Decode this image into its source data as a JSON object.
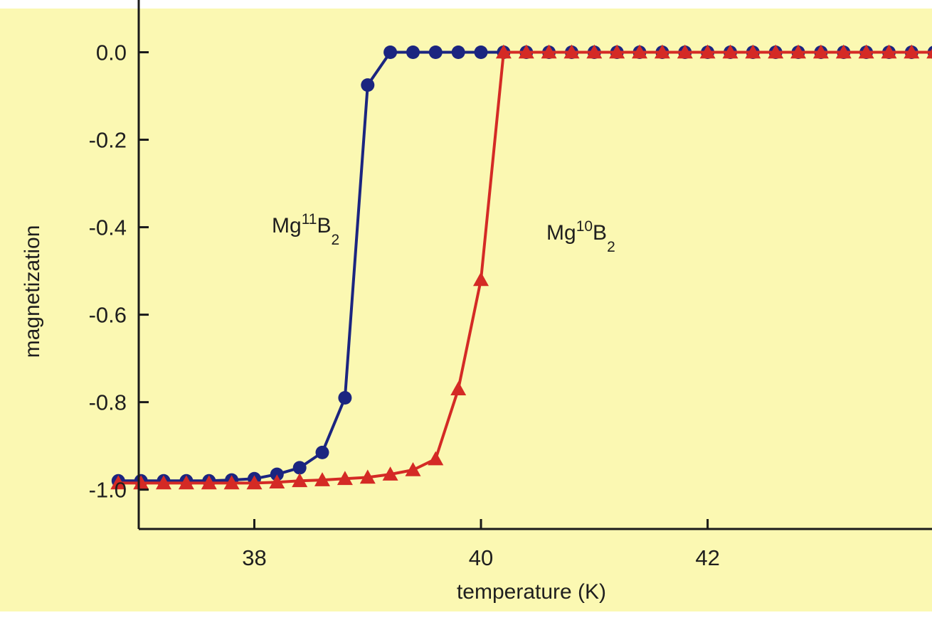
{
  "colors": {
    "background": "#fbf8b2",
    "axis": "#1a1a1a",
    "mg11": "#1b2580",
    "mg10": "#d42a25"
  },
  "chart_data": {
    "type": "line",
    "xlabel": "temperature (K)",
    "ylabel": "magnetization",
    "xlim": [
      36.98,
      43.98
    ],
    "ylim": [
      -1.09,
      0.1
    ],
    "x_ticks": [
      38,
      40,
      42
    ],
    "x_tick_labels": [
      "38",
      "40",
      "42"
    ],
    "y_ticks": [
      0.0,
      -0.2,
      -0.4,
      -0.6,
      -0.8,
      -1.0
    ],
    "y_tick_labels": [
      "0.0",
      "-0.2",
      "-0.4",
      "-0.6",
      "-0.8",
      "-1.0"
    ],
    "grid": false,
    "series": [
      {
        "name_parts": {
          "base": "Mg",
          "sup": "11",
          "mid": "B",
          "sub": "2"
        },
        "marker": "circle",
        "color": "#1b2580",
        "x": [
          36.8,
          37.0,
          37.2,
          37.4,
          37.6,
          37.8,
          38.0,
          38.2,
          38.4,
          38.6,
          38.8,
          39.0,
          39.2,
          39.4,
          39.6,
          39.8,
          40.0,
          40.2,
          40.4,
          40.6,
          40.8,
          41.0,
          41.2,
          41.4,
          41.6,
          41.8,
          42.0,
          42.2,
          42.4,
          42.6,
          42.8,
          43.0,
          43.2,
          43.4,
          43.6,
          43.8,
          44.0
        ],
        "y": [
          -0.98,
          -0.98,
          -0.98,
          -0.98,
          -0.98,
          -0.978,
          -0.975,
          -0.965,
          -0.95,
          -0.915,
          -0.79,
          -0.075,
          0.0,
          0.0,
          0.0,
          0.0,
          0.0,
          0.0,
          0.0,
          0.0,
          0.0,
          0.0,
          0.0,
          0.0,
          0.0,
          0.0,
          0.0,
          0.0,
          0.0,
          0.0,
          0.0,
          0.0,
          0.0,
          0.0,
          0.0,
          0.0,
          0.0
        ]
      },
      {
        "name_parts": {
          "base": "Mg",
          "sup": "10",
          "mid": "B",
          "sub": "2"
        },
        "marker": "triangle",
        "color": "#d42a25",
        "x": [
          36.8,
          37.0,
          37.2,
          37.4,
          37.6,
          37.8,
          38.0,
          38.2,
          38.4,
          38.6,
          38.8,
          39.0,
          39.2,
          39.4,
          39.6,
          39.8,
          40.0,
          40.2,
          40.4,
          40.6,
          40.8,
          41.0,
          41.2,
          41.4,
          41.6,
          41.8,
          42.0,
          42.2,
          42.4,
          42.6,
          42.8,
          43.0,
          43.2,
          43.4,
          43.6,
          43.8,
          44.0
        ],
        "y": [
          -0.985,
          -0.985,
          -0.985,
          -0.985,
          -0.985,
          -0.985,
          -0.985,
          -0.983,
          -0.98,
          -0.978,
          -0.975,
          -0.972,
          -0.965,
          -0.955,
          -0.93,
          -0.77,
          -0.52,
          0.0,
          0.0,
          0.0,
          0.0,
          0.0,
          0.0,
          0.0,
          0.0,
          0.0,
          0.0,
          0.0,
          0.0,
          0.0,
          0.0,
          0.0,
          0.0,
          0.0,
          0.0,
          0.0,
          0.0
        ]
      }
    ]
  }
}
